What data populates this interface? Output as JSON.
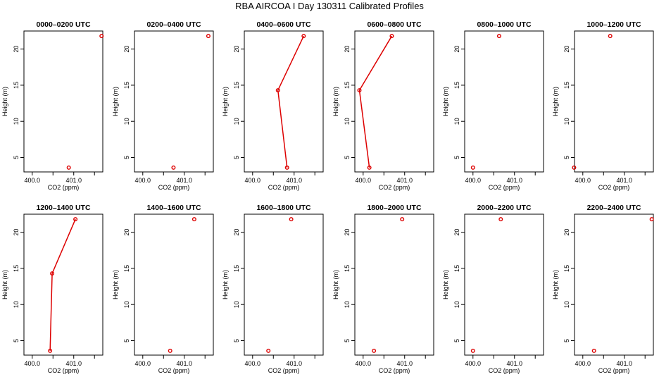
{
  "title": "RBA AIRCOA I  Day 130311  Calibrated Profiles",
  "colors": {
    "series": "#dd0000",
    "axis": "#000000",
    "background": "#ffffff"
  },
  "chart_data": [
    {
      "type": "line",
      "title": "0000–0200 UTC",
      "xlabel": "CO2 (ppm)",
      "ylabel": "Height (m)",
      "xlim": [
        399.8,
        401.7
      ],
      "ylim": [
        3,
        22.5
      ],
      "xticks": [
        400.0,
        400.5,
        401.0,
        401.5
      ],
      "xtick_labels": [
        "400.0",
        "",
        "401.0",
        ""
      ],
      "yticks": [
        5,
        10,
        15,
        20
      ],
      "ytick_labels": [
        "5",
        "10",
        "15",
        "20"
      ],
      "points": [
        {
          "x": 401.67,
          "y": 21.8
        },
        {
          "x": 400.88,
          "y": 3.6
        }
      ],
      "connect": []
    },
    {
      "type": "line",
      "title": "0200–0400 UTC",
      "xlabel": "CO2 (ppm)",
      "ylabel": "Height (m)",
      "xlim": [
        399.8,
        401.7
      ],
      "ylim": [
        3,
        22.5
      ],
      "xticks": [
        400.0,
        400.5,
        401.0,
        401.5
      ],
      "xtick_labels": [
        "400.0",
        "",
        "401.0",
        ""
      ],
      "yticks": [
        5,
        10,
        15,
        20
      ],
      "ytick_labels": [
        "5",
        "10",
        "15",
        "20"
      ],
      "points": [
        {
          "x": 401.58,
          "y": 21.8
        },
        {
          "x": 400.74,
          "y": 3.6
        }
      ],
      "connect": []
    },
    {
      "type": "line",
      "title": "0400–0600 UTC",
      "xlabel": "CO2 (ppm)",
      "ylabel": "Height (m)",
      "xlim": [
        399.8,
        401.7
      ],
      "ylim": [
        3,
        22.5
      ],
      "xticks": [
        400.0,
        400.5,
        401.0,
        401.5
      ],
      "xtick_labels": [
        "400.0",
        "",
        "401.0",
        ""
      ],
      "yticks": [
        5,
        10,
        15,
        20
      ],
      "ytick_labels": [
        "5",
        "10",
        "15",
        "20"
      ],
      "points": [
        {
          "x": 401.23,
          "y": 21.8
        },
        {
          "x": 400.61,
          "y": 14.3
        },
        {
          "x": 400.83,
          "y": 3.6
        }
      ],
      "connect": [
        0,
        1,
        2
      ]
    },
    {
      "type": "line",
      "title": "0600–0800 UTC",
      "xlabel": "CO2 (ppm)",
      "ylabel": "Height (m)",
      "xlim": [
        399.8,
        401.7
      ],
      "ylim": [
        3,
        22.5
      ],
      "xticks": [
        400.0,
        400.5,
        401.0,
        401.5
      ],
      "xtick_labels": [
        "400.0",
        "",
        "401.0",
        ""
      ],
      "yticks": [
        5,
        10,
        15,
        20
      ],
      "ytick_labels": [
        "5",
        "10",
        "15",
        "20"
      ],
      "points": [
        {
          "x": 400.69,
          "y": 21.8
        },
        {
          "x": 399.91,
          "y": 14.3
        },
        {
          "x": 400.15,
          "y": 3.6
        }
      ],
      "connect": [
        0,
        1,
        2
      ]
    },
    {
      "type": "scatter",
      "title": "0800–1000 UTC",
      "xlabel": "CO2 (ppm)",
      "ylabel": "Height (m)",
      "xlim": [
        399.8,
        401.7
      ],
      "ylim": [
        3,
        22.5
      ],
      "xticks": [
        400.0,
        400.5,
        401.0,
        401.5
      ],
      "xtick_labels": [
        "400.0",
        "",
        "401.0",
        ""
      ],
      "yticks": [
        5,
        10,
        15,
        20
      ],
      "ytick_labels": [
        "5",
        "10",
        "15",
        "20"
      ],
      "points": [
        {
          "x": 400.63,
          "y": 21.8
        },
        {
          "x": 400.0,
          "y": 3.6
        }
      ],
      "connect": []
    },
    {
      "type": "scatter",
      "title": "1000–1200 UTC",
      "xlabel": "CO2 (ppm)",
      "ylabel": "Height (m)",
      "xlim": [
        399.8,
        401.7
      ],
      "ylim": [
        3,
        22.5
      ],
      "xticks": [
        400.0,
        400.5,
        401.0,
        401.5
      ],
      "xtick_labels": [
        "400.0",
        "",
        "401.0",
        ""
      ],
      "yticks": [
        5,
        10,
        15,
        20
      ],
      "ytick_labels": [
        "5",
        "10",
        "15",
        "20"
      ],
      "points": [
        {
          "x": 400.66,
          "y": 21.8
        },
        {
          "x": 399.79,
          "y": 3.6
        }
      ],
      "connect": []
    },
    {
      "type": "line",
      "title": "1200–1400 UTC",
      "xlabel": "CO2 (ppm)",
      "ylabel": "Height (m)",
      "xlim": [
        399.8,
        401.7
      ],
      "ylim": [
        3,
        22.5
      ],
      "xticks": [
        400.0,
        400.5,
        401.0,
        401.5
      ],
      "xtick_labels": [
        "400.0",
        "",
        "401.0",
        ""
      ],
      "yticks": [
        5,
        10,
        15,
        20
      ],
      "ytick_labels": [
        "5",
        "10",
        "15",
        "20"
      ],
      "points": [
        {
          "x": 401.04,
          "y": 21.8
        },
        {
          "x": 400.48,
          "y": 14.3
        },
        {
          "x": 400.43,
          "y": 3.6
        }
      ],
      "connect": [
        0,
        1,
        2
      ]
    },
    {
      "type": "scatter",
      "title": "1400–1600 UTC",
      "xlabel": "CO2 (ppm)",
      "ylabel": "Height (m)",
      "xlim": [
        399.8,
        401.7
      ],
      "ylim": [
        3,
        22.5
      ],
      "xticks": [
        400.0,
        400.5,
        401.0,
        401.5
      ],
      "xtick_labels": [
        "400.0",
        "",
        "401.0",
        ""
      ],
      "yticks": [
        5,
        10,
        15,
        20
      ],
      "ytick_labels": [
        "5",
        "10",
        "15",
        "20"
      ],
      "points": [
        {
          "x": 401.24,
          "y": 21.8
        },
        {
          "x": 400.66,
          "y": 3.6
        }
      ],
      "connect": []
    },
    {
      "type": "scatter",
      "title": "1600–1800 UTC",
      "xlabel": "CO2 (ppm)",
      "ylabel": "Height (m)",
      "xlim": [
        399.8,
        401.7
      ],
      "ylim": [
        3,
        22.5
      ],
      "xticks": [
        400.0,
        400.5,
        401.0,
        401.5
      ],
      "xtick_labels": [
        "400.0",
        "",
        "401.0",
        ""
      ],
      "yticks": [
        5,
        10,
        15,
        20
      ],
      "ytick_labels": [
        "5",
        "10",
        "15",
        "20"
      ],
      "points": [
        {
          "x": 400.93,
          "y": 21.8
        },
        {
          "x": 400.38,
          "y": 3.6
        }
      ],
      "connect": []
    },
    {
      "type": "scatter",
      "title": "1800–2000 UTC",
      "xlabel": "CO2 (ppm)",
      "ylabel": "Height (m)",
      "xlim": [
        399.8,
        401.7
      ],
      "ylim": [
        3,
        22.5
      ],
      "xticks": [
        400.0,
        400.5,
        401.0,
        401.5
      ],
      "xtick_labels": [
        "400.0",
        "",
        "401.0",
        ""
      ],
      "yticks": [
        5,
        10,
        15,
        20
      ],
      "ytick_labels": [
        "5",
        "10",
        "15",
        "20"
      ],
      "points": [
        {
          "x": 400.94,
          "y": 21.8
        },
        {
          "x": 400.26,
          "y": 3.6
        }
      ],
      "connect": []
    },
    {
      "type": "scatter",
      "title": "2000–2200 UTC",
      "xlabel": "CO2 (ppm)",
      "ylabel": "Height (m)",
      "xlim": [
        399.8,
        401.7
      ],
      "ylim": [
        3,
        22.5
      ],
      "xticks": [
        400.0,
        400.5,
        401.0,
        401.5
      ],
      "xtick_labels": [
        "400.0",
        "",
        "401.0",
        ""
      ],
      "yticks": [
        5,
        10,
        15,
        20
      ],
      "ytick_labels": [
        "5",
        "10",
        "15",
        "20"
      ],
      "points": [
        {
          "x": 400.67,
          "y": 21.8
        },
        {
          "x": 400.0,
          "y": 3.6
        }
      ],
      "connect": []
    },
    {
      "type": "scatter",
      "title": "2200–2400 UTC",
      "xlabel": "CO2 (ppm)",
      "ylabel": "Height (m)",
      "xlim": [
        399.8,
        401.7
      ],
      "ylim": [
        3,
        22.5
      ],
      "xticks": [
        400.0,
        400.5,
        401.0,
        401.5
      ],
      "xtick_labels": [
        "400.0",
        "",
        "401.0",
        ""
      ],
      "yticks": [
        5,
        10,
        15,
        20
      ],
      "ytick_labels": [
        "5",
        "10",
        "15",
        "20"
      ],
      "points": [
        {
          "x": 401.66,
          "y": 21.8
        },
        {
          "x": 400.27,
          "y": 3.6
        }
      ],
      "connect": []
    }
  ]
}
